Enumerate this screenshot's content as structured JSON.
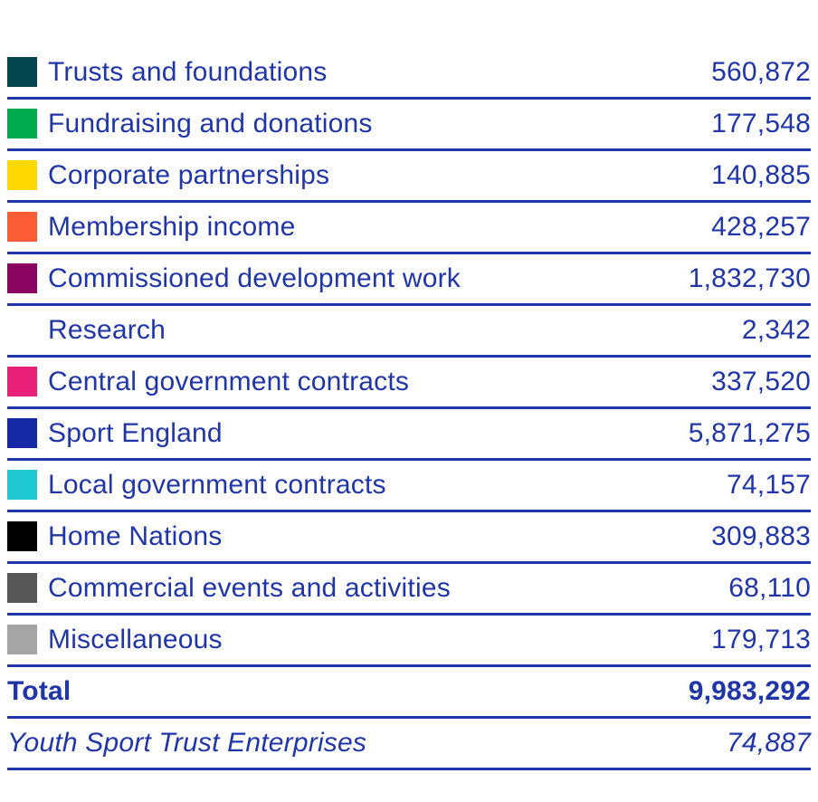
{
  "style": {
    "text_color": "#2035a8",
    "divider_color": "#2035a8",
    "background_color": "#ffffff"
  },
  "legend": {
    "rows": [
      {
        "label": "Trusts and foundations",
        "value": "560,872",
        "swatch_color": "#04464f",
        "swatch_name": "dark-teal-swatch"
      },
      {
        "label": "Fundraising and donations",
        "value": "177,548",
        "swatch_color": "#00ac4f",
        "swatch_name": "green-swatch"
      },
      {
        "label": "Corporate partnerships",
        "value": "140,885",
        "swatch_color": "#ffd800",
        "swatch_name": "yellow-swatch"
      },
      {
        "label": "Membership income",
        "value": "428,257",
        "swatch_color": "#fb5c35",
        "swatch_name": "orange-swatch"
      },
      {
        "label": "Commissioned development work",
        "value": "1,832,730",
        "swatch_color": "#8a0560",
        "swatch_name": "maroon-swatch"
      },
      {
        "label": "Research",
        "value": "2,342",
        "swatch_color": "#ffffff",
        "swatch_name": "white-swatch"
      },
      {
        "label": "Central government contracts",
        "value": "337,520",
        "swatch_color": "#e92078",
        "swatch_name": "pink-swatch"
      },
      {
        "label": "Sport England",
        "value": "5,871,275",
        "swatch_color": "#1528a6",
        "swatch_name": "blue-swatch"
      },
      {
        "label": "Local government contracts",
        "value": "74,157",
        "swatch_color": "#20c9d1",
        "swatch_name": "cyan-swatch"
      },
      {
        "label": "Home Nations",
        "value": "309,883",
        "swatch_color": "#000000",
        "swatch_name": "black-swatch"
      },
      {
        "label": "Commercial events and activities",
        "value": "68,110",
        "swatch_color": "#575757",
        "swatch_name": "dark-gray-swatch"
      },
      {
        "label": "Miscellaneous",
        "value": "179,713",
        "swatch_color": "#a5a5a5",
        "swatch_name": "light-gray-swatch"
      }
    ],
    "total": {
      "label": "Total",
      "value": "9,983,292"
    },
    "footnote": {
      "label": "Youth Sport Trust Enterprises",
      "value": "74,887"
    }
  },
  "chart_data": {
    "type": "table",
    "title": "",
    "categories": [
      "Trusts and foundations",
      "Fundraising and donations",
      "Corporate partnerships",
      "Membership income",
      "Commissioned development work",
      "Research",
      "Central government contracts",
      "Sport England",
      "Local government contracts",
      "Home Nations",
      "Commercial events and activities",
      "Miscellaneous"
    ],
    "values": [
      560872,
      177548,
      140885,
      428257,
      1832730,
      2342,
      337520,
      5871275,
      74157,
      309883,
      68110,
      179713
    ],
    "total": 9983292,
    "footnote_category": "Youth Sport Trust Enterprises",
    "footnote_value": 74887,
    "legend_position": "left",
    "grid": false
  }
}
